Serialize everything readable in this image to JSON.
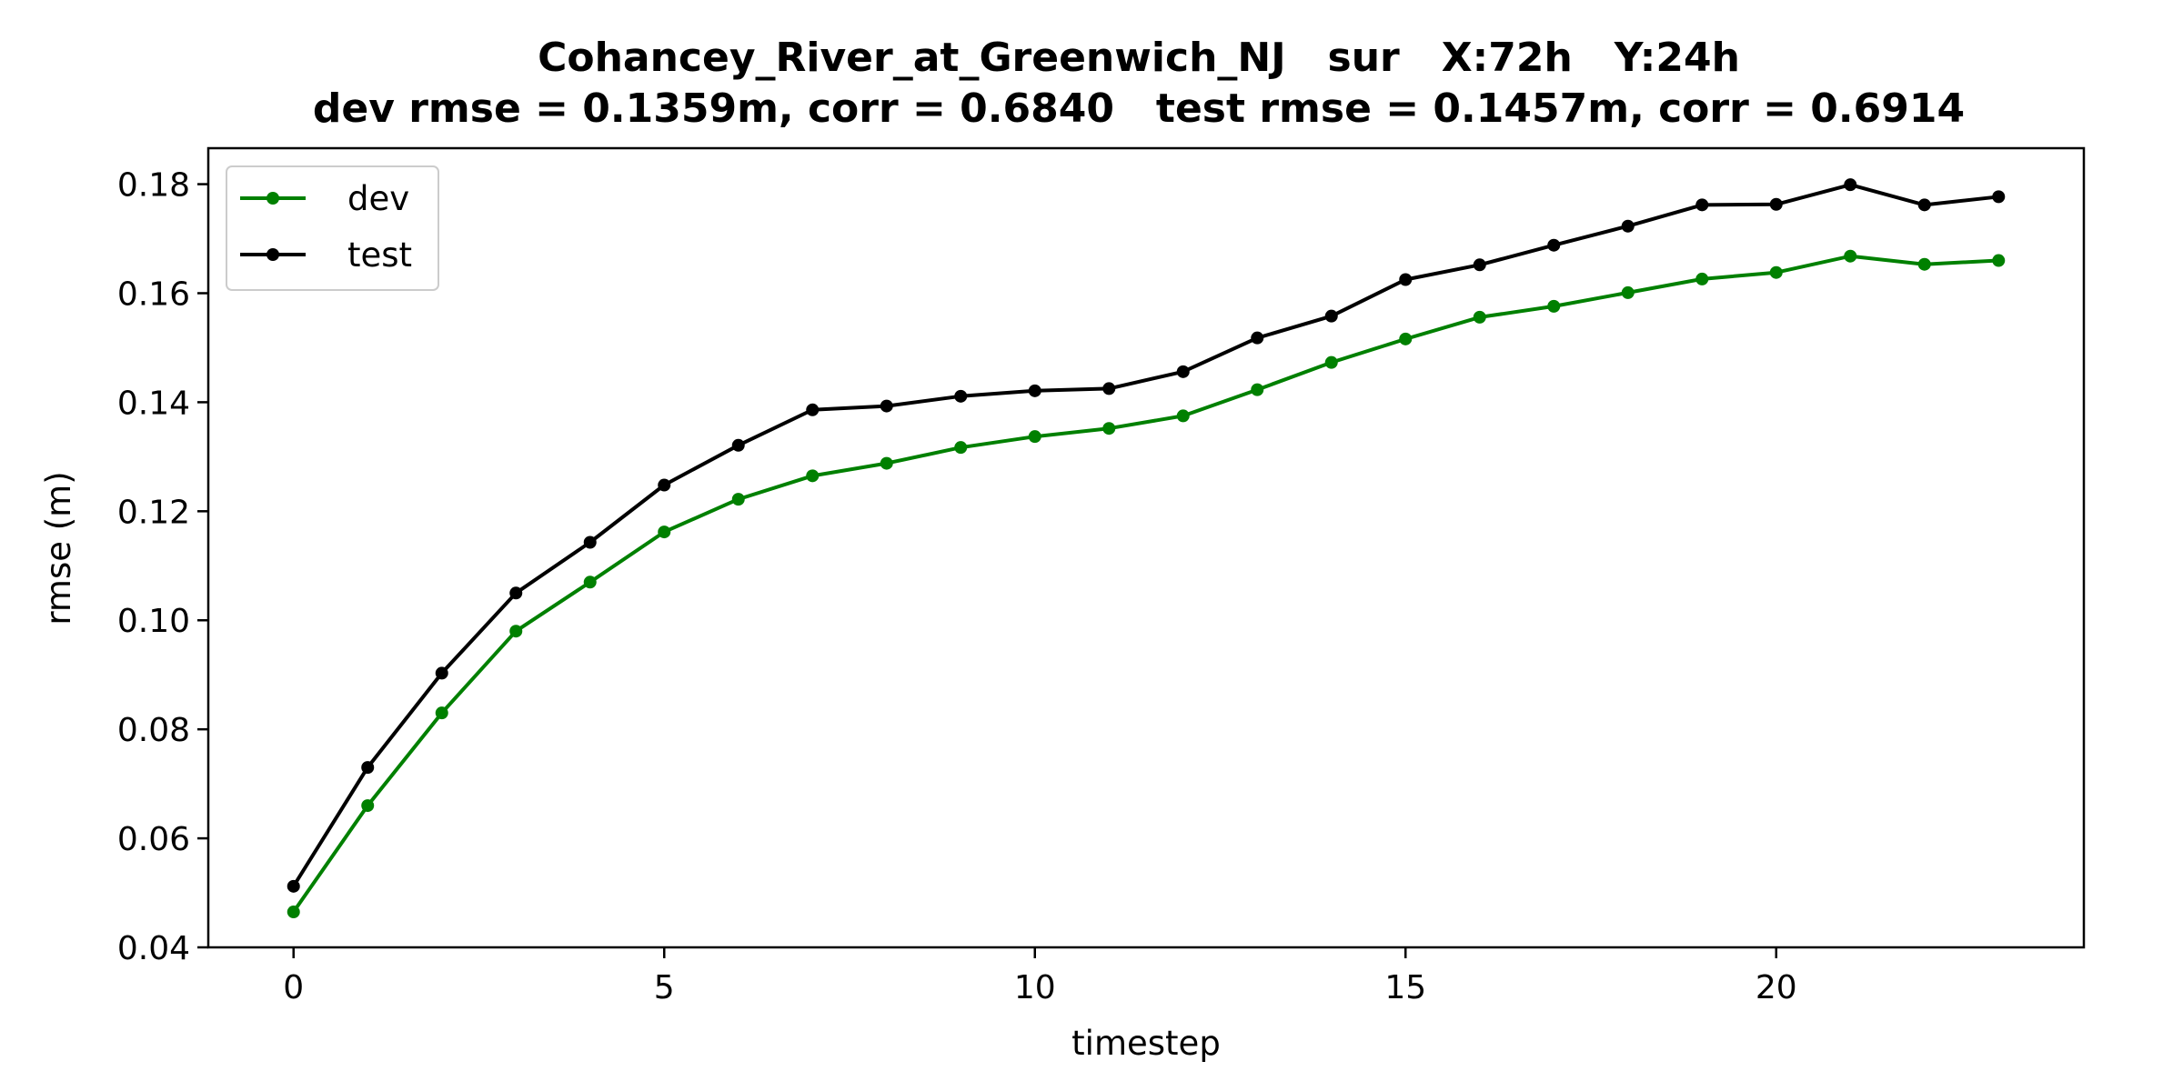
{
  "chart_data": {
    "type": "line",
    "title_line1": "Cohancey_River_at_Greenwich_NJ   sur   X:72h   Y:24h",
    "title_line2": "dev rmse = 0.1359m, corr = 0.6840   test rmse = 0.1457m, corr = 0.6914",
    "xlabel": "timestep",
    "ylabel": "rmse (m)",
    "xlim": [
      -1.15,
      24.15
    ],
    "ylim": [
      0.04,
      0.1866
    ],
    "x_ticks": [
      0,
      5,
      10,
      15,
      20
    ],
    "x_tick_labels": [
      "0",
      "5",
      "10",
      "15",
      "20"
    ],
    "y_ticks": [
      0.04,
      0.06,
      0.08,
      0.1,
      0.12,
      0.14,
      0.16,
      0.18
    ],
    "y_tick_labels": [
      "0.04",
      "0.06",
      "0.08",
      "0.10",
      "0.12",
      "0.14",
      "0.16",
      "0.18"
    ],
    "grid": false,
    "legend_position": "upper-left",
    "x": [
      0,
      1,
      2,
      3,
      4,
      5,
      6,
      7,
      8,
      9,
      10,
      11,
      12,
      13,
      14,
      15,
      16,
      17,
      18,
      19,
      20,
      21,
      22,
      23
    ],
    "series": [
      {
        "name": "dev",
        "color": "#008000",
        "values": [
          0.0465,
          0.066,
          0.083,
          0.098,
          0.107,
          0.1162,
          0.1222,
          0.1265,
          0.1288,
          0.1317,
          0.1337,
          0.1352,
          0.1375,
          0.1423,
          0.1473,
          0.1516,
          0.1556,
          0.1576,
          0.1601,
          0.1626,
          0.1638,
          0.1668,
          0.1653,
          0.166
        ]
      },
      {
        "name": "test",
        "color": "#000000",
        "values": [
          0.0512,
          0.073,
          0.0903,
          0.105,
          0.1143,
          0.1248,
          0.1321,
          0.1386,
          0.1393,
          0.1411,
          0.1421,
          0.1425,
          0.1456,
          0.1518,
          0.1558,
          0.1625,
          0.1652,
          0.1688,
          0.1723,
          0.1762,
          0.1763,
          0.1799,
          0.1762,
          0.1777
        ]
      }
    ]
  }
}
